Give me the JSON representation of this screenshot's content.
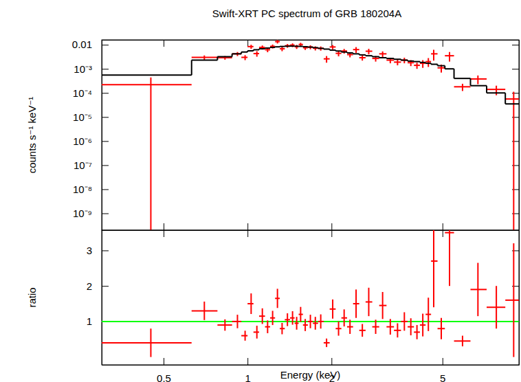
{
  "chart_data": [
    {
      "type": "scatter",
      "title": "Swift-XRT PC spectrum of GRB 180204A",
      "y_label": "counts s⁻¹ keV⁻¹",
      "log": true,
      "tick_labels": "y",
      "xlim": [
        0.3,
        9.4
      ],
      "xticks": [
        0.5,
        1,
        2,
        5
      ],
      "ylim": [
        2e-10,
        0.016
      ],
      "yticks": [
        0.01,
        {
          "value": 0.001,
          "label": "10⁻³"
        },
        {
          "value": 0.0001,
          "label": "10⁻⁴"
        },
        {
          "value": 1e-05,
          "label": "10⁻⁵"
        },
        {
          "value": 1e-06,
          "label": "10⁻⁶"
        },
        {
          "value": 1e-07,
          "label": "10⁻⁷"
        },
        {
          "value": 1e-08,
          "label": "10⁻⁸"
        },
        {
          "value": 1e-09,
          "label": "10⁻⁹"
        }
      ],
      "x": [
        0.45,
        0.7,
        0.83,
        0.92,
        0.98,
        1.03,
        1.08,
        1.13,
        1.18,
        1.23,
        1.28,
        1.33,
        1.39,
        1.45,
        1.5,
        1.55,
        1.61,
        1.68,
        1.75,
        1.83,
        1.92,
        2.02,
        2.12,
        2.22,
        2.33,
        2.45,
        2.58,
        2.72,
        2.88,
        3.05,
        3.25,
        3.45,
        3.65,
        3.85,
        4.05,
        4.25,
        4.45,
        4.65,
        4.95,
        5.3,
        5.9,
        6.7,
        7.8,
        9.0
      ],
      "bins": [
        0.3,
        0.63,
        0.78,
        0.88,
        0.95,
        1.0,
        1.05,
        1.1,
        1.155,
        1.205,
        1.255,
        1.305,
        1.36,
        1.42,
        1.475,
        1.525,
        1.58,
        1.645,
        1.715,
        1.79,
        1.875,
        1.97,
        2.07,
        2.17,
        2.275,
        2.39,
        2.515,
        2.65,
        2.8,
        2.965,
        3.15,
        3.35,
        3.55,
        3.75,
        3.95,
        4.15,
        4.35,
        4.55,
        4.8,
        5.1,
        5.5,
        6.3,
        7.2,
        8.4,
        9.4
      ],
      "series": [
        {
          "type": "scatter",
          "color": "#ff0000",
          "values": [
            0.00022,
            0.003,
            0.0029,
            0.0042,
            0.003,
            0.0084,
            0.0043,
            0.0078,
            0.0062,
            0.0086,
            0.0135,
            0.0068,
            0.0091,
            0.0097,
            0.0083,
            0.0103,
            0.0075,
            0.008,
            0.0072,
            0.0071,
            0.0026,
            0.0081,
            0.0044,
            0.0055,
            0.0039,
            0.0063,
            0.0029,
            0.0054,
            0.0027,
            0.0042,
            0.0023,
            0.0019,
            0.0023,
            0.0018,
            0.0014,
            0.0017,
            0.002,
            0.0042,
            0.0011,
            0.0035,
            0.00018,
            0.00038,
            0.00014,
            5.6e-05
          ],
          "yerr": [
            0.00022,
            0.0006,
            0.0005,
            0.0008,
            0.0007,
            0.0016,
            0.0011,
            0.0015,
            0.0013,
            0.0016,
            0.0022,
            0.0014,
            0.0016,
            0.0017,
            0.0016,
            0.0018,
            0.0014,
            0.0015,
            0.0014,
            0.0014,
            0.0008,
            0.0016,
            0.0011,
            0.0012,
            0.0009,
            0.0017,
            0.0007,
            0.0014,
            0.0007,
            0.0011,
            0.0006,
            0.0005,
            0.0006,
            0.0005,
            0.0004,
            0.0006,
            0.0008,
            0.002,
            0.0004,
            0.0015,
            6e-05,
            0.00015,
            6e-05,
            5.6e-05
          ]
        },
        {
          "type": "step",
          "color": "#000000",
          "values": [
            0.00055,
            0.0023,
            0.0032,
            0.0042,
            0.005,
            0.0056,
            0.0062,
            0.0068,
            0.0073,
            0.0078,
            0.0082,
            0.0085,
            0.0087,
            0.0088,
            0.0087,
            0.0086,
            0.0083,
            0.008,
            0.0076,
            0.0071,
            0.0066,
            0.006,
            0.0055,
            0.005,
            0.0046,
            0.0042,
            0.0038,
            0.0035,
            0.0032,
            0.0029,
            0.0027,
            0.0025,
            0.0023,
            0.0021,
            0.002,
            0.00185,
            0.0017,
            0.00155,
            0.00135,
            0.001,
            0.0004,
            0.0002,
            0.0001,
            3.5e-05
          ]
        }
      ]
    },
    {
      "type": "scatter",
      "x_label": "Energy (keV)",
      "y_label": "ratio",
      "log": "x",
      "xlim": [
        0.3,
        9.4
      ],
      "xticks": [
        0.5,
        1,
        2,
        5
      ],
      "ylim": [
        -0.22,
        3.57
      ],
      "yticks": [
        1,
        2,
        3
      ],
      "x": [
        0.45,
        0.7,
        0.83,
        0.92,
        0.98,
        1.03,
        1.08,
        1.13,
        1.18,
        1.23,
        1.28,
        1.33,
        1.39,
        1.45,
        1.5,
        1.55,
        1.61,
        1.68,
        1.75,
        1.83,
        1.92,
        2.02,
        2.12,
        2.22,
        2.33,
        2.45,
        2.58,
        2.72,
        2.88,
        3.05,
        3.25,
        3.45,
        3.65,
        3.85,
        4.05,
        4.25,
        4.45,
        4.65,
        4.95,
        5.3,
        5.9,
        6.7,
        7.8,
        9.0
      ],
      "bins": [
        0.3,
        0.63,
        0.78,
        0.88,
        0.95,
        1.0,
        1.05,
        1.1,
        1.155,
        1.205,
        1.255,
        1.305,
        1.36,
        1.42,
        1.475,
        1.525,
        1.58,
        1.645,
        1.715,
        1.79,
        1.875,
        1.97,
        2.07,
        2.17,
        2.275,
        2.39,
        2.515,
        2.65,
        2.8,
        2.965,
        3.15,
        3.35,
        3.55,
        3.75,
        3.95,
        4.15,
        4.35,
        4.55,
        4.8,
        5.1,
        5.5,
        6.3,
        7.2,
        8.4,
        9.4
      ],
      "hline": {
        "y": 1,
        "color": "#00ff00"
      },
      "series": [
        {
          "type": "scatter",
          "color": "#ff0000",
          "values": [
            0.4,
            1.3,
            0.9,
            1.0,
            0.6,
            1.5,
            0.7,
            1.15,
            0.85,
            1.1,
            1.65,
            0.8,
            1.05,
            1.1,
            0.95,
            1.2,
            0.9,
            1.0,
            0.95,
            1.0,
            0.4,
            1.35,
            0.8,
            1.1,
            0.85,
            1.5,
            0.75,
            1.55,
            0.85,
            1.45,
            0.85,
            0.75,
            1.0,
            0.85,
            0.7,
            0.9,
            1.2,
            2.7,
            0.8,
            3.5,
            0.45,
            1.9,
            1.4,
            1.6
          ],
          "yerr": [
            0.4,
            0.26,
            0.16,
            0.19,
            0.14,
            0.29,
            0.18,
            0.22,
            0.18,
            0.2,
            0.27,
            0.16,
            0.18,
            0.19,
            0.18,
            0.21,
            0.17,
            0.19,
            0.18,
            0.2,
            0.12,
            0.27,
            0.2,
            0.24,
            0.2,
            0.4,
            0.18,
            0.4,
            0.2,
            0.38,
            0.22,
            0.2,
            0.26,
            0.24,
            0.2,
            0.32,
            0.47,
            1.3,
            0.3,
            1.5,
            0.15,
            0.75,
            0.6,
            1.6
          ]
        }
      ]
    }
  ]
}
